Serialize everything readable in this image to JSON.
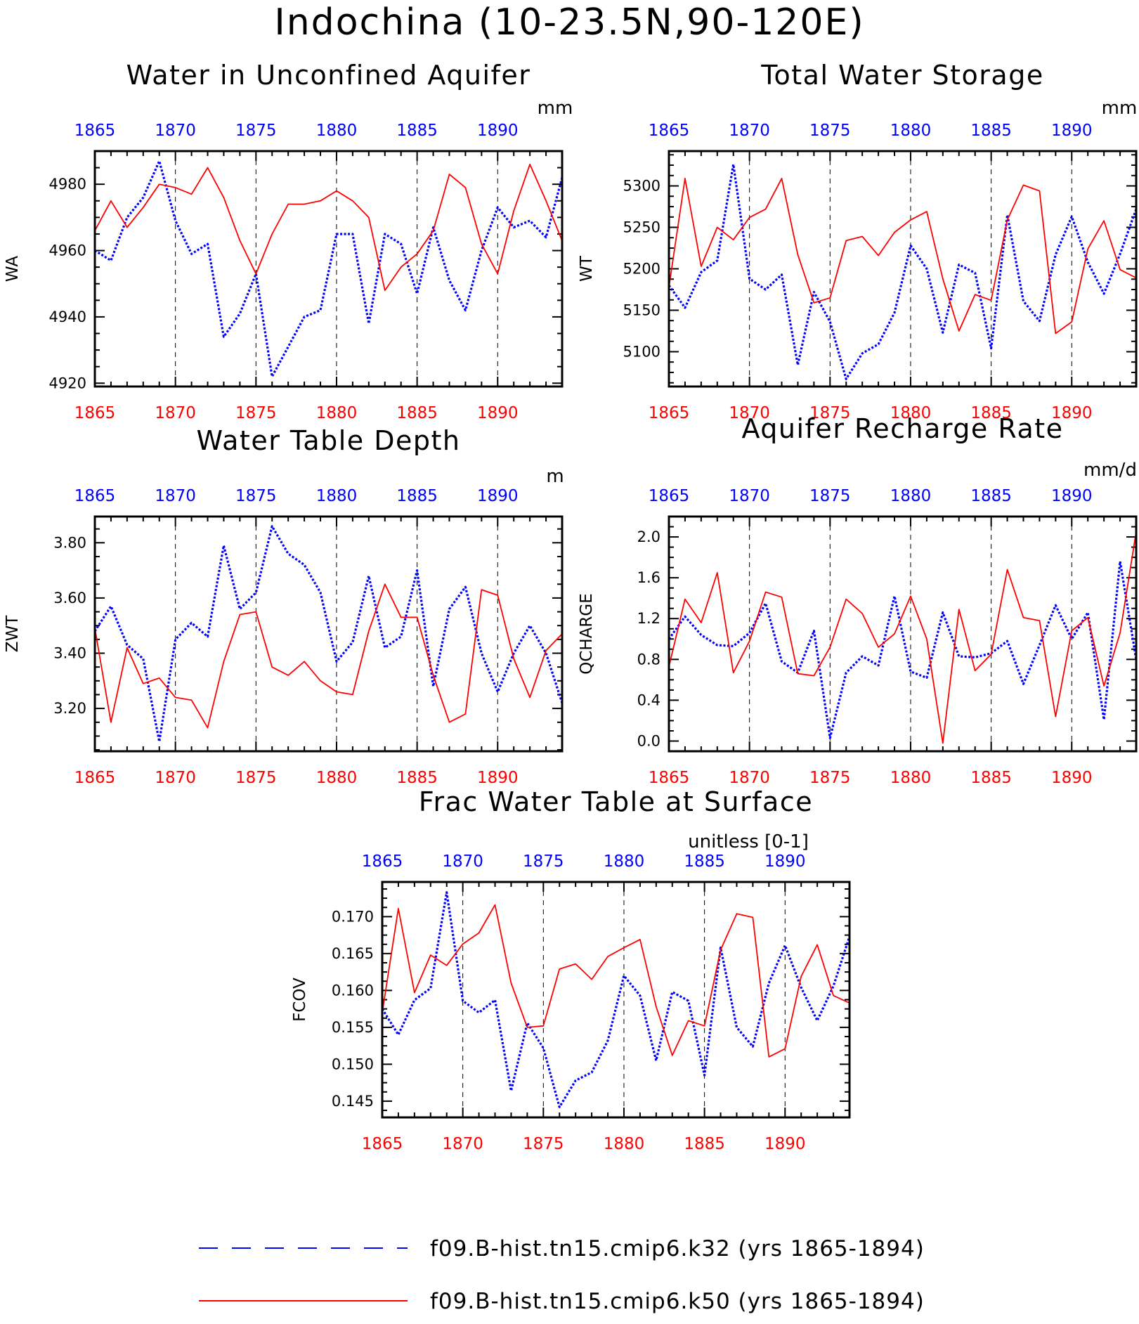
{
  "figure_title": "Indochina (10-23.5N,90-120E)",
  "colors": {
    "k32": "#0000ff",
    "k50": "#ff0000",
    "axis": "#000000"
  },
  "legend": [
    {
      "label": "f09.B-hist.tn15.cmip6.k32 (yrs 1865-1894)",
      "color": "#0000ff",
      "style": "dashed"
    },
    {
      "label": "f09.B-hist.tn15.cmip6.k50 (yrs 1865-1894)",
      "color": "#ff0000",
      "style": "solid"
    }
  ],
  "chart_data": [
    {
      "type": "line",
      "title": "Water in Unconfined Aquifer",
      "units": "mm",
      "ylabel": "WA",
      "xlim": [
        1865,
        1894
      ],
      "ylim": [
        4919,
        4990
      ],
      "yticks": [
        4920,
        4940,
        4960,
        4980
      ],
      "ytick_labels": [
        "4920",
        "4940",
        "4960",
        "4980"
      ],
      "xticks": [
        1865,
        1870,
        1875,
        1880,
        1885,
        1890
      ],
      "x": [
        1865,
        1866,
        1867,
        1868,
        1869,
        1870,
        1871,
        1872,
        1873,
        1874,
        1875,
        1876,
        1877,
        1878,
        1879,
        1880,
        1881,
        1882,
        1883,
        1884,
        1885,
        1886,
        1887,
        1888,
        1889,
        1890,
        1891,
        1892,
        1893,
        1894
      ],
      "series": [
        {
          "name": "f09.B-hist.tn15.cmip6.k32 (yrs 1865-1894)",
          "color": "#0000ff",
          "style": "dotted",
          "values": [
            4960,
            4957,
            4970,
            4976,
            4987,
            4969,
            4959,
            4962,
            4934,
            4941,
            4953,
            4922,
            4931,
            4940,
            4942,
            4965,
            4965,
            4938,
            4965,
            4962,
            4947,
            4967,
            4951,
            4942,
            4960,
            4973,
            4967,
            4969,
            4964,
            4982
          ]
        },
        {
          "name": "f09.B-hist.tn15.cmip6.k50 (yrs 1865-1894)",
          "color": "#ff0000",
          "style": "solid",
          "values": [
            4966,
            4975,
            4967,
            4973,
            4980,
            4979,
            4977,
            4985,
            4976,
            4963,
            4953,
            4965,
            4974,
            4974,
            4975,
            4978,
            4975,
            4970,
            4948,
            4955,
            4959,
            4966,
            4983,
            4979,
            4962,
            4953,
            4972,
            4986,
            4975,
            4963
          ]
        }
      ]
    },
    {
      "type": "line",
      "title": "Total Water Storage",
      "units": "mm",
      "ylabel": "WT",
      "xlim": [
        1865,
        1894
      ],
      "ylim": [
        5058,
        5342
      ],
      "yticks": [
        5100,
        5150,
        5200,
        5250,
        5300
      ],
      "ytick_labels": [
        "5100",
        "5150",
        "5200",
        "5250",
        "5300"
      ],
      "xticks": [
        1865,
        1870,
        1875,
        1880,
        1885,
        1890
      ],
      "x": [
        1865,
        1866,
        1867,
        1868,
        1869,
        1870,
        1871,
        1872,
        1873,
        1874,
        1875,
        1876,
        1877,
        1878,
        1879,
        1880,
        1881,
        1882,
        1883,
        1884,
        1885,
        1886,
        1887,
        1888,
        1889,
        1890,
        1891,
        1892,
        1893,
        1894
      ],
      "series": [
        {
          "name": "f09.B-hist.tn15.cmip6.k32 (yrs 1865-1894)",
          "color": "#0000ff",
          "style": "dotted",
          "values": [
            5180,
            5153,
            5196,
            5210,
            5326,
            5188,
            5175,
            5193,
            5084,
            5172,
            5136,
            5067,
            5098,
            5109,
            5147,
            5228,
            5200,
            5123,
            5205,
            5195,
            5104,
            5265,
            5161,
            5137,
            5217,
            5263,
            5208,
            5170,
            5218,
            5272
          ]
        },
        {
          "name": "f09.B-hist.tn15.cmip6.k50 (yrs 1865-1894)",
          "color": "#ff0000",
          "style": "solid",
          "values": [
            5178,
            5309,
            5203,
            5250,
            5235,
            5262,
            5272,
            5309,
            5217,
            5159,
            5165,
            5234,
            5239,
            5216,
            5244,
            5259,
            5269,
            5188,
            5125,
            5169,
            5162,
            5259,
            5301,
            5294,
            5122,
            5136,
            5224,
            5258,
            5199,
            5189
          ]
        }
      ]
    },
    {
      "type": "line",
      "title": "Water Table Depth",
      "units": "m",
      "ylabel": "ZWT",
      "xlim": [
        1865,
        1894
      ],
      "ylim": [
        3.045,
        3.895
      ],
      "yticks": [
        3.2,
        3.4,
        3.6,
        3.8
      ],
      "ytick_labels": [
        "3.20",
        "3.40",
        "3.60",
        "3.80"
      ],
      "xticks": [
        1865,
        1870,
        1875,
        1880,
        1885,
        1890
      ],
      "x": [
        1865,
        1866,
        1867,
        1868,
        1869,
        1870,
        1871,
        1872,
        1873,
        1874,
        1875,
        1876,
        1877,
        1878,
        1879,
        1880,
        1881,
        1882,
        1883,
        1884,
        1885,
        1886,
        1887,
        1888,
        1889,
        1890,
        1891,
        1892,
        1893,
        1894
      ],
      "series": [
        {
          "name": "f09.B-hist.tn15.cmip6.k32 (yrs 1865-1894)",
          "color": "#0000ff",
          "style": "dotted",
          "values": [
            3.48,
            3.57,
            3.43,
            3.38,
            3.08,
            3.45,
            3.51,
            3.46,
            3.79,
            3.56,
            3.62,
            3.86,
            3.76,
            3.72,
            3.62,
            3.37,
            3.44,
            3.68,
            3.42,
            3.46,
            3.7,
            3.28,
            3.56,
            3.64,
            3.4,
            3.26,
            3.4,
            3.5,
            3.4,
            3.22
          ]
        },
        {
          "name": "f09.B-hist.tn15.cmip6.k50 (yrs 1865-1894)",
          "color": "#ff0000",
          "style": "solid",
          "values": [
            3.49,
            3.15,
            3.42,
            3.29,
            3.31,
            3.24,
            3.23,
            3.13,
            3.37,
            3.54,
            3.55,
            3.35,
            3.32,
            3.37,
            3.3,
            3.26,
            3.25,
            3.48,
            3.65,
            3.53,
            3.53,
            3.32,
            3.15,
            3.18,
            3.63,
            3.61,
            3.38,
            3.24,
            3.41,
            3.47
          ]
        }
      ]
    },
    {
      "type": "line",
      "title": "Aquifer Recharge Rate",
      "units": "mm/d",
      "ylabel": "QCHARGE",
      "xlim": [
        1865,
        1894
      ],
      "ylim": [
        -0.1,
        2.2
      ],
      "yticks": [
        0.0,
        0.4,
        0.8,
        1.2,
        1.6,
        2.0
      ],
      "ytick_labels": [
        "0.0",
        "0.4",
        "0.8",
        "1.2",
        "1.6",
        "2.0"
      ],
      "xticks": [
        1865,
        1870,
        1875,
        1880,
        1885,
        1890
      ],
      "x": [
        1865,
        1866,
        1867,
        1868,
        1869,
        1870,
        1871,
        1872,
        1873,
        1874,
        1875,
        1876,
        1877,
        1878,
        1879,
        1880,
        1881,
        1882,
        1883,
        1884,
        1885,
        1886,
        1887,
        1888,
        1889,
        1890,
        1891,
        1892,
        1893,
        1894
      ],
      "series": [
        {
          "name": "f09.B-hist.tn15.cmip6.k32 (yrs 1865-1894)",
          "color": "#0000ff",
          "style": "dotted",
          "values": [
            1.0,
            1.22,
            1.04,
            0.94,
            0.93,
            1.06,
            1.35,
            0.78,
            0.67,
            1.08,
            0.03,
            0.67,
            0.83,
            0.74,
            1.42,
            0.68,
            0.62,
            1.26,
            0.83,
            0.82,
            0.86,
            0.98,
            0.56,
            0.94,
            1.33,
            1.0,
            1.26,
            0.21,
            1.76,
            0.8
          ]
        },
        {
          "name": "f09.B-hist.tn15.cmip6.k50 (yrs 1865-1894)",
          "color": "#ff0000",
          "style": "solid",
          "values": [
            0.73,
            1.39,
            1.16,
            1.65,
            0.67,
            0.98,
            1.46,
            1.41,
            0.66,
            0.64,
            0.92,
            1.39,
            1.25,
            0.92,
            1.05,
            1.42,
            1.0,
            -0.02,
            1.29,
            0.69,
            0.85,
            1.68,
            1.21,
            1.18,
            0.24,
            1.08,
            1.21,
            0.54,
            1.06,
            2.05
          ]
        }
      ]
    },
    {
      "type": "line",
      "title": "Frac Water Table at Surface",
      "units": "unitless [0-1]",
      "ylabel": "FCOV",
      "xlim": [
        1865,
        1894
      ],
      "ylim": [
        0.1428,
        0.1747
      ],
      "yticks": [
        0.145,
        0.15,
        0.155,
        0.16,
        0.165,
        0.17
      ],
      "ytick_labels": [
        "0.145",
        "0.150",
        "0.155",
        "0.160",
        "0.165",
        "0.170"
      ],
      "xticks": [
        1865,
        1870,
        1875,
        1880,
        1885,
        1890
      ],
      "x": [
        1865,
        1866,
        1867,
        1868,
        1869,
        1870,
        1871,
        1872,
        1873,
        1874,
        1875,
        1876,
        1877,
        1878,
        1879,
        1880,
        1881,
        1882,
        1883,
        1884,
        1885,
        1886,
        1887,
        1888,
        1889,
        1890,
        1891,
        1892,
        1893,
        1894
      ],
      "series": [
        {
          "name": "f09.B-hist.tn15.cmip6.k32 (yrs 1865-1894)",
          "color": "#0000ff",
          "style": "dotted",
          "values": [
            0.1575,
            0.154,
            0.1587,
            0.1603,
            0.1733,
            0.1586,
            0.157,
            0.1587,
            0.1464,
            0.1556,
            0.1522,
            0.1442,
            0.1478,
            0.1489,
            0.1532,
            0.162,
            0.1593,
            0.1505,
            0.1598,
            0.1586,
            0.1485,
            0.1658,
            0.155,
            0.1524,
            0.161,
            0.1661,
            0.1604,
            0.1559,
            0.1606,
            0.1673
          ]
        },
        {
          "name": "f09.B-hist.tn15.cmip6.k50 (yrs 1865-1894)",
          "color": "#ff0000",
          "style": "solid",
          "values": [
            0.157,
            0.1711,
            0.1597,
            0.1648,
            0.1634,
            0.1663,
            0.1678,
            0.1716,
            0.161,
            0.155,
            0.1552,
            0.1629,
            0.1636,
            0.1615,
            0.1646,
            0.1658,
            0.1669,
            0.1578,
            0.1512,
            0.1559,
            0.1552,
            0.1655,
            0.1704,
            0.1699,
            0.151,
            0.1521,
            0.1619,
            0.1662,
            0.1593,
            0.1583
          ]
        }
      ]
    }
  ]
}
